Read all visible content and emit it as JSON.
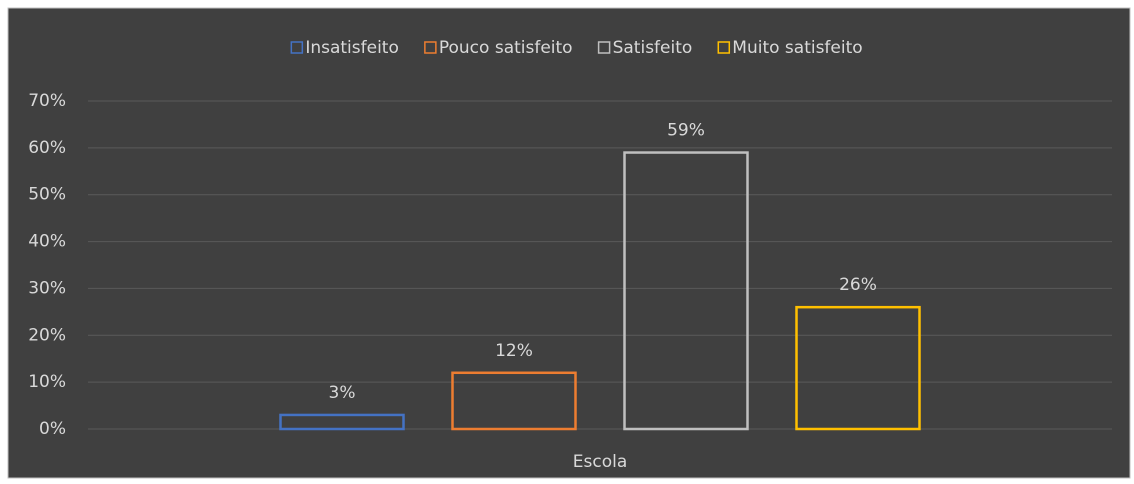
{
  "chart_data": {
    "type": "bar",
    "categories": [
      "Escola"
    ],
    "series": [
      {
        "name": "Insatisfeito",
        "color": "#4472c4",
        "values": [
          3
        ],
        "value_labels": [
          "3%"
        ]
      },
      {
        "name": "Pouco satisfeito",
        "color": "#ed7d31",
        "values": [
          12
        ],
        "value_labels": [
          "12%"
        ]
      },
      {
        "name": "Satisfeito",
        "color": "#bfbfbf",
        "values": [
          59
        ],
        "value_labels": [
          "59%"
        ]
      },
      {
        "name": "Muito satisfeito",
        "color": "#ffc000",
        "values": [
          26
        ],
        "value_labels": [
          "26%"
        ]
      }
    ],
    "ylim": [
      0,
      70
    ],
    "yticks": [
      {
        "value": 0,
        "label": "0%"
      },
      {
        "value": 10,
        "label": "10%"
      },
      {
        "value": 20,
        "label": "20%"
      },
      {
        "value": 30,
        "label": "30%"
      },
      {
        "value": 40,
        "label": "40%"
      },
      {
        "value": 50,
        "label": "50%"
      },
      {
        "value": 60,
        "label": "60%"
      },
      {
        "value": 70,
        "label": "70%"
      }
    ],
    "grid": true,
    "legend": "top"
  }
}
